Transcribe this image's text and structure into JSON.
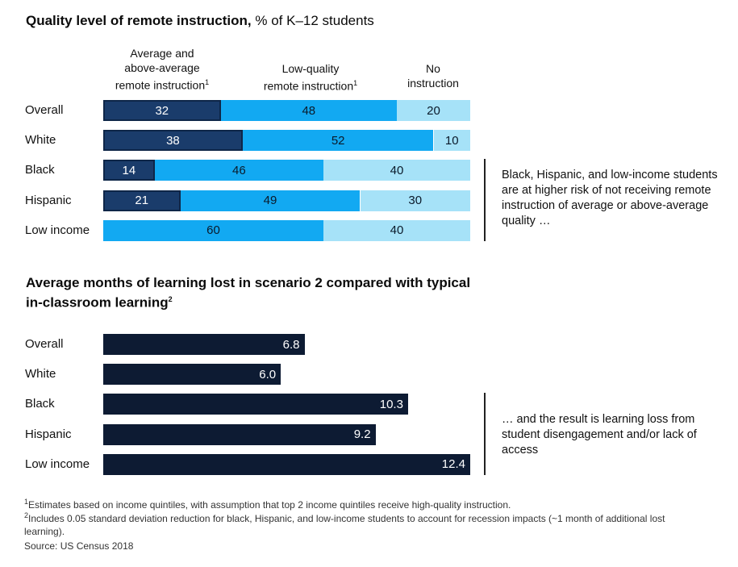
{
  "chart_data": [
    {
      "type": "bar",
      "stacked": true,
      "orientation": "horizontal",
      "title": "Quality level of remote instruction,",
      "unit": "% of K–12 students",
      "categories": [
        "Overall",
        "White",
        "Black",
        "Hispanic",
        "Low income"
      ],
      "series": [
        {
          "name": "Average and above-average remote instruction",
          "name_lines": [
            "Average and",
            "above-average",
            "remote instruction"
          ],
          "footnote_mark": "1",
          "color": "#1a3c6b",
          "values": [
            32,
            38,
            14,
            21,
            null
          ]
        },
        {
          "name": "Low-quality remote instruction",
          "name_lines": [
            "Low-quality",
            "remote instruction"
          ],
          "footnote_mark": "1",
          "color": "#12a9f2",
          "values": [
            48,
            52,
            46,
            49,
            60
          ]
        },
        {
          "name": "No instruction",
          "name_lines": [
            "No",
            "instruction"
          ],
          "footnote_mark": "",
          "color": "#a6e2f8",
          "values": [
            20,
            10,
            40,
            30,
            40
          ]
        }
      ],
      "xlim": [
        0,
        100
      ],
      "annotation": "Black, Hispanic, and low-income students are at higher risk of not receiving remote instruction of average or above-average quality …"
    },
    {
      "type": "bar",
      "orientation": "horizontal",
      "title": "Average months of learning lost in scenario 2 compared with typical in-classroom learning",
      "title_footnote_mark": "2",
      "categories": [
        "Overall",
        "White",
        "Black",
        "Hispanic",
        "Low income"
      ],
      "color": "#0d1b33",
      "values": [
        6.8,
        6.0,
        10.3,
        9.2,
        12.4
      ],
      "value_labels": [
        "6.8",
        "6.0",
        "10.3",
        "9.2",
        "12.4"
      ],
      "xlim": [
        0,
        12.4
      ],
      "annotation": "… and the result is learning loss from student disengagement and/or lack of access"
    }
  ],
  "footnotes": [
    {
      "mark": "1",
      "text": "Estimates based on income quintiles, with assumption that top 2 income quintiles receive high-quality instruction."
    },
    {
      "mark": "2",
      "text": "Includes 0.05 standard deviation reduction for black, Hispanic, and low-income students to account for recession impacts (~1 month of additional lost learning)."
    }
  ],
  "source": "Source: US Census 2018"
}
